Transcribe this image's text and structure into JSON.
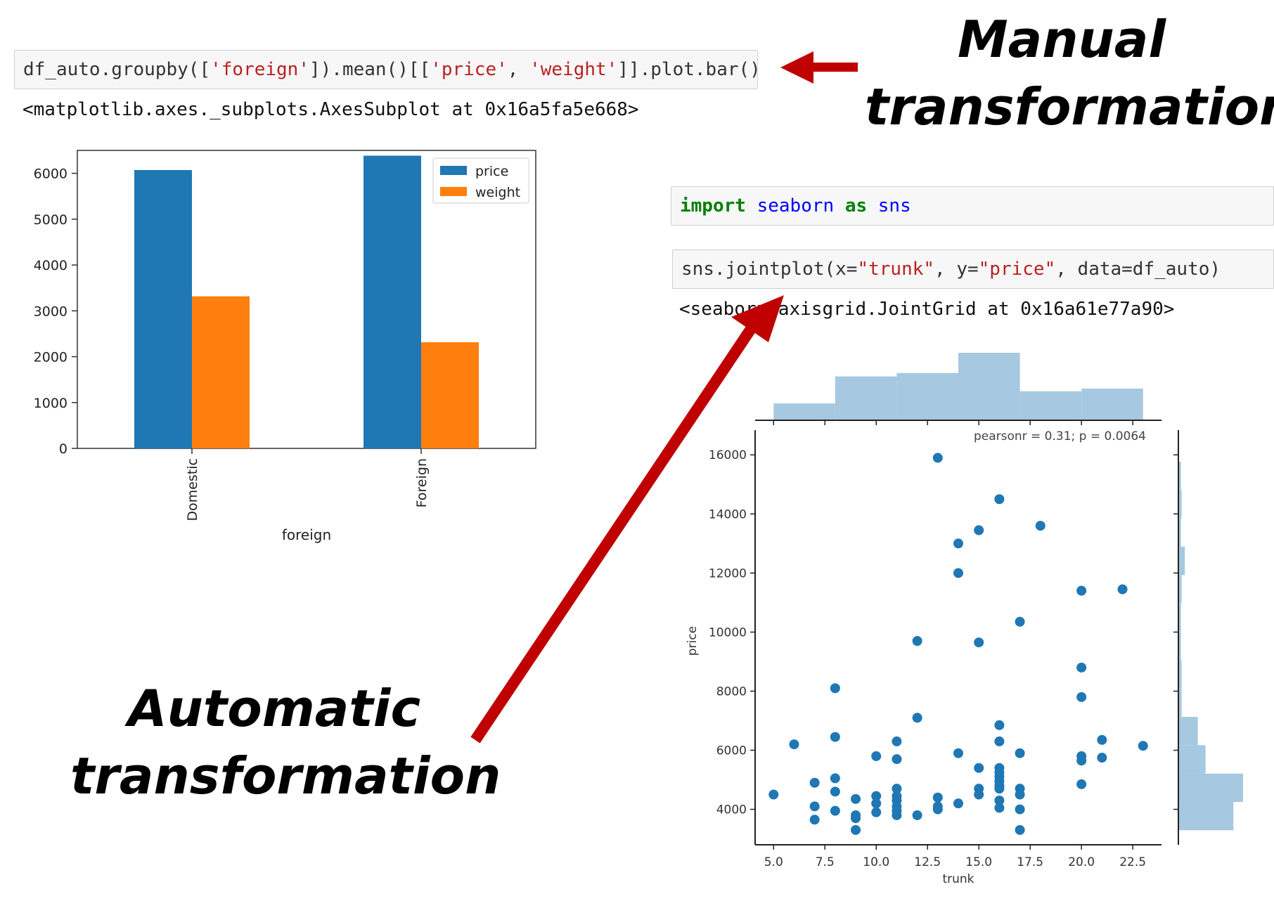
{
  "cells": {
    "groupby": {
      "p1": "df_auto.groupby([",
      "s1": "'foreign'",
      "p2": "]).mean()[[",
      "s2": "'price'",
      "p3": ", ",
      "s3": "'weight'",
      "p4": "]].plot.bar()"
    },
    "groupby_output": "<matplotlib.axes._subplots.AxesSubplot at 0x16a5fa5e668>",
    "import": {
      "kw1": "import",
      "nm1": "seaborn",
      "kw2": "as",
      "nm2": "sns"
    },
    "jointplot": {
      "p1": "sns.jointplot(x=",
      "s1": "\"trunk\"",
      "p2": ", y=",
      "s2": "\"price\"",
      "p3": ", data=df_auto)"
    },
    "jointplot_output": "<seaborn.axisgrid.JointGrid at 0x16a61e77a90>"
  },
  "annotations": {
    "manual": [
      "Manual",
      "transformation"
    ],
    "automatic": [
      "Automatic",
      "transformation"
    ]
  },
  "colors": {
    "arrow": "#c00000",
    "blue": "#1f77b4",
    "orange": "#ff7f0e",
    "hist": "#a6c8e1"
  },
  "chart_data": [
    {
      "type": "bar",
      "categories": [
        "Domestic",
        "Foreign"
      ],
      "series": [
        {
          "name": "price",
          "values": [
            6072,
            6385
          ]
        },
        {
          "name": "weight",
          "values": [
            3317,
            2316
          ]
        }
      ],
      "xlabel": "foreign",
      "ylabel": "",
      "ylim": [
        0,
        6500
      ],
      "yticks": [
        0,
        1000,
        2000,
        3000,
        4000,
        5000,
        6000
      ],
      "legend": "top-right",
      "grid": false
    },
    {
      "type": "scatter",
      "xlabel": "trunk",
      "ylabel": "price",
      "xlim": [
        4.1,
        23.9
      ],
      "ylim": [
        2800,
        16600
      ],
      "xticks": [
        5.0,
        7.5,
        10.0,
        12.5,
        15.0,
        17.5,
        20.0,
        22.5
      ],
      "xtick_labels": [
        "5.0",
        "7.5",
        "10.0",
        "12.5",
        "15.0",
        "17.5",
        "20.0",
        "22.5"
      ],
      "yticks": [
        4000,
        6000,
        8000,
        10000,
        12000,
        14000,
        16000
      ],
      "annotation": "pearsonr = 0.31; p = 0.0064",
      "points": [
        [
          5,
          4500
        ],
        [
          6,
          6200
        ],
        [
          7,
          4900
        ],
        [
          7,
          4100
        ],
        [
          7,
          3650
        ],
        [
          8,
          8100
        ],
        [
          8,
          6450
        ],
        [
          8,
          5050
        ],
        [
          8,
          4600
        ],
        [
          8,
          3950
        ],
        [
          9,
          4350
        ],
        [
          9,
          3800
        ],
        [
          9,
          3700
        ],
        [
          9,
          3300
        ],
        [
          10,
          5800
        ],
        [
          10,
          4450
        ],
        [
          10,
          4200
        ],
        [
          10,
          3900
        ],
        [
          11,
          6300
        ],
        [
          11,
          5700
        ],
        [
          11,
          4700
        ],
        [
          11,
          4450
        ],
        [
          11,
          4300
        ],
        [
          11,
          4100
        ],
        [
          11,
          3950
        ],
        [
          11,
          3800
        ],
        [
          12,
          9700
        ],
        [
          12,
          7100
        ],
        [
          12,
          3800
        ],
        [
          13,
          15900
        ],
        [
          13,
          4400
        ],
        [
          13,
          4100
        ],
        [
          13,
          4000
        ],
        [
          14,
          13000
        ],
        [
          14,
          12000
        ],
        [
          14,
          5900
        ],
        [
          14,
          4200
        ],
        [
          15,
          13450
        ],
        [
          15,
          9650
        ],
        [
          15,
          5400
        ],
        [
          15,
          4700
        ],
        [
          15,
          4500
        ],
        [
          16,
          14500
        ],
        [
          16,
          6850
        ],
        [
          16,
          6300
        ],
        [
          16,
          5400
        ],
        [
          16,
          5250
        ],
        [
          16,
          5100
        ],
        [
          16,
          4950
        ],
        [
          16,
          4800
        ],
        [
          16,
          4700
        ],
        [
          16,
          4300
        ],
        [
          16,
          4050
        ],
        [
          17,
          10350
        ],
        [
          17,
          5900
        ],
        [
          17,
          4700
        ],
        [
          17,
          4500
        ],
        [
          17,
          4000
        ],
        [
          17,
          3300
        ],
        [
          18,
          13600
        ],
        [
          20,
          11400
        ],
        [
          20,
          8800
        ],
        [
          20,
          7800
        ],
        [
          20,
          5800
        ],
        [
          20,
          5650
        ],
        [
          20,
          4850
        ],
        [
          21,
          6350
        ],
        [
          21,
          5750
        ],
        [
          22,
          11450
        ],
        [
          23,
          6150
        ]
      ],
      "marginal_x": {
        "edges": [
          5.0,
          8.0,
          11.0,
          14.0,
          17.0,
          20.0,
          23.0
        ],
        "heights": [
          0.25,
          0.65,
          0.7,
          1.0,
          0.43,
          0.47
        ]
      },
      "marginal_y": {
        "edges": [
          3291,
          4250,
          5210,
          6170,
          7130,
          8090,
          9050,
          10010,
          10970,
          11930,
          12890,
          13850,
          14810,
          15770
        ],
        "widths": [
          0.85,
          1.0,
          0.42,
          0.3,
          0.05,
          0.05,
          0.04,
          0.04,
          0.05,
          0.1,
          0.04,
          0.05,
          0.04
        ]
      }
    }
  ]
}
